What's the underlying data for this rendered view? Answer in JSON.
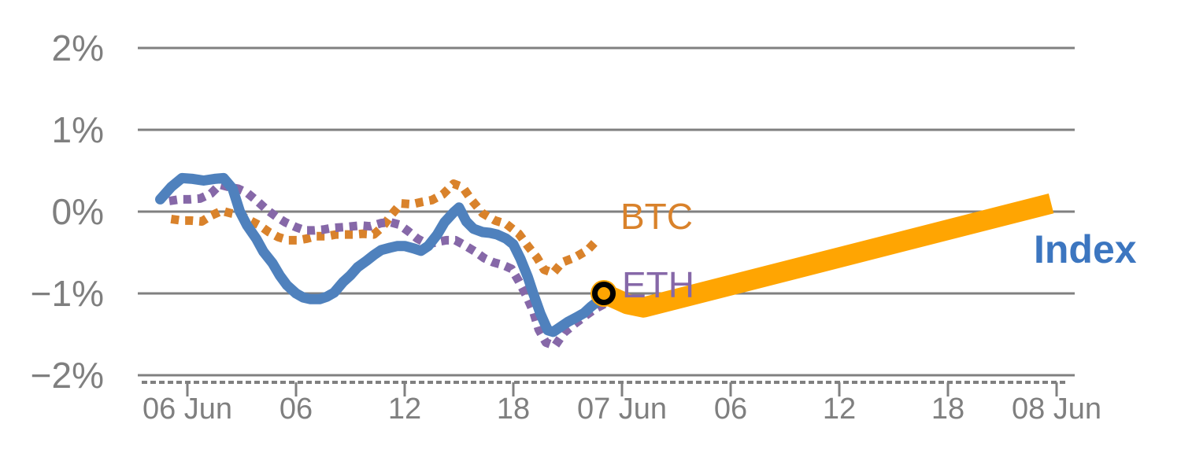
{
  "chart_data": {
    "type": "line",
    "title": "",
    "description": "Intraday percent-change chart comparing BTC, ETH and a crypto Index, with an amber projection band extending to 08 Jun and a black ring marker at the current value",
    "x_axis": {
      "unit": "time",
      "tick_hours": [
        0,
        6,
        12,
        18,
        24,
        30,
        36,
        42,
        48
      ],
      "tick_labels": [
        "06 Jun",
        "06",
        "12",
        "18",
        "07 Jun",
        "06",
        "12",
        "18",
        "08 Jun"
      ],
      "range_hours": [
        -2.7,
        49.0
      ]
    },
    "y_axis": {
      "unit": "%",
      "tick_values": [
        2,
        1,
        0,
        -1,
        -2
      ],
      "tick_labels": [
        "2%",
        "1%",
        "0%",
        "−1%",
        "−2%"
      ],
      "range": [
        -2,
        2
      ],
      "grid": true
    },
    "series": [
      {
        "name": "BTC",
        "style": "dotted",
        "color": "#d9822b",
        "points": [
          [
            -0.9,
            -0.09
          ],
          [
            -0.3,
            -0.11
          ],
          [
            0.2,
            -0.11
          ],
          [
            0.8,
            -0.12
          ],
          [
            1.3,
            -0.05
          ],
          [
            1.9,
            0.01
          ],
          [
            2.4,
            -0.02
          ],
          [
            2.9,
            -0.04
          ],
          [
            3.4,
            -0.1
          ],
          [
            4.0,
            -0.17
          ],
          [
            4.5,
            -0.25
          ],
          [
            5.0,
            -0.31
          ],
          [
            5.6,
            -0.35
          ],
          [
            6.1,
            -0.35
          ],
          [
            6.6,
            -0.33
          ],
          [
            7.1,
            -0.3
          ],
          [
            7.7,
            -0.3
          ],
          [
            8.2,
            -0.28
          ],
          [
            8.7,
            -0.28
          ],
          [
            9.2,
            -0.28
          ],
          [
            9.7,
            -0.27
          ],
          [
            10.3,
            -0.28
          ],
          [
            10.8,
            -0.18
          ],
          [
            11.3,
            -0.03
          ],
          [
            11.8,
            0.1
          ],
          [
            12.4,
            0.09
          ],
          [
            13.0,
            0.12
          ],
          [
            13.5,
            0.14
          ],
          [
            14.1,
            0.21
          ],
          [
            14.7,
            0.34
          ],
          [
            15.2,
            0.3
          ],
          [
            15.7,
            0.14
          ],
          [
            16.3,
            -0.02
          ],
          [
            17.0,
            -0.11
          ],
          [
            17.6,
            -0.15
          ],
          [
            18.3,
            -0.27
          ],
          [
            18.8,
            -0.42
          ],
          [
            19.3,
            -0.56
          ],
          [
            19.7,
            -0.71
          ],
          [
            20.2,
            -0.75
          ],
          [
            20.7,
            -0.62
          ],
          [
            21.4,
            -0.56
          ],
          [
            22.1,
            -0.47
          ],
          [
            22.7,
            -0.33
          ]
        ]
      },
      {
        "name": "ETH",
        "style": "dotted",
        "color": "#8668a8",
        "points": [
          [
            -1.0,
            0.13
          ],
          [
            -0.4,
            0.15
          ],
          [
            0.1,
            0.15
          ],
          [
            0.7,
            0.16
          ],
          [
            1.3,
            0.22
          ],
          [
            1.8,
            0.33
          ],
          [
            2.3,
            0.3
          ],
          [
            2.8,
            0.28
          ],
          [
            3.3,
            0.23
          ],
          [
            3.9,
            0.12
          ],
          [
            4.4,
            0.02
          ],
          [
            4.9,
            -0.06
          ],
          [
            5.4,
            -0.13
          ],
          [
            6.0,
            -0.19
          ],
          [
            6.5,
            -0.23
          ],
          [
            7.0,
            -0.23
          ],
          [
            7.5,
            -0.22
          ],
          [
            8.0,
            -0.2
          ],
          [
            8.6,
            -0.19
          ],
          [
            9.1,
            -0.18
          ],
          [
            9.6,
            -0.17
          ],
          [
            10.1,
            -0.18
          ],
          [
            10.7,
            -0.14
          ],
          [
            11.2,
            -0.13
          ],
          [
            11.7,
            -0.16
          ],
          [
            12.2,
            -0.24
          ],
          [
            12.7,
            -0.33
          ],
          [
            13.3,
            -0.4
          ],
          [
            13.8,
            -0.37
          ],
          [
            14.3,
            -0.35
          ],
          [
            14.8,
            -0.35
          ],
          [
            15.3,
            -0.41
          ],
          [
            15.9,
            -0.49
          ],
          [
            16.4,
            -0.57
          ],
          [
            16.9,
            -0.62
          ],
          [
            17.4,
            -0.65
          ],
          [
            17.9,
            -0.7
          ],
          [
            18.3,
            -0.85
          ],
          [
            18.7,
            -1.02
          ],
          [
            19.1,
            -1.22
          ],
          [
            19.4,
            -1.44
          ],
          [
            19.8,
            -1.6
          ],
          [
            20.3,
            -1.64
          ],
          [
            20.8,
            -1.48
          ],
          [
            21.4,
            -1.37
          ],
          [
            22.0,
            -1.27
          ],
          [
            22.5,
            -1.19
          ],
          [
            23.1,
            -1.12
          ]
        ]
      },
      {
        "name": "Index forecast",
        "style": "band",
        "color": "#ffa502",
        "points": [
          [
            23.0,
            -1.0
          ],
          [
            24.3,
            -1.13
          ],
          [
            25.2,
            -1.17
          ],
          [
            47.7,
            0.1
          ]
        ]
      },
      {
        "name": "Index",
        "style": "line",
        "color": "#4f81bd",
        "points": [
          [
            -1.5,
            0.15
          ],
          [
            -0.9,
            0.3
          ],
          [
            -0.3,
            0.41
          ],
          [
            0.3,
            0.4
          ],
          [
            0.9,
            0.38
          ],
          [
            1.5,
            0.4
          ],
          [
            2.0,
            0.41
          ],
          [
            2.5,
            0.28
          ],
          [
            2.9,
            0.0
          ],
          [
            3.3,
            -0.17
          ],
          [
            3.8,
            -0.33
          ],
          [
            4.2,
            -0.49
          ],
          [
            4.7,
            -0.63
          ],
          [
            5.1,
            -0.78
          ],
          [
            5.5,
            -0.9
          ],
          [
            6.0,
            -1.0
          ],
          [
            6.4,
            -1.05
          ],
          [
            6.8,
            -1.07
          ],
          [
            7.3,
            -1.07
          ],
          [
            7.7,
            -1.04
          ],
          [
            8.1,
            -0.99
          ],
          [
            8.6,
            -0.86
          ],
          [
            9.0,
            -0.78
          ],
          [
            9.4,
            -0.68
          ],
          [
            9.9,
            -0.6
          ],
          [
            10.3,
            -0.53
          ],
          [
            10.7,
            -0.47
          ],
          [
            11.2,
            -0.44
          ],
          [
            11.6,
            -0.42
          ],
          [
            12.0,
            -0.42
          ],
          [
            12.5,
            -0.45
          ],
          [
            12.9,
            -0.48
          ],
          [
            13.3,
            -0.42
          ],
          [
            13.8,
            -0.28
          ],
          [
            14.2,
            -0.13
          ],
          [
            14.7,
            -0.01
          ],
          [
            15.0,
            0.05
          ],
          [
            15.4,
            -0.12
          ],
          [
            15.8,
            -0.21
          ],
          [
            16.3,
            -0.25
          ],
          [
            16.7,
            -0.26
          ],
          [
            17.1,
            -0.28
          ],
          [
            17.6,
            -0.33
          ],
          [
            18.0,
            -0.4
          ],
          [
            18.4,
            -0.58
          ],
          [
            18.8,
            -0.8
          ],
          [
            19.1,
            -1.0
          ],
          [
            19.5,
            -1.25
          ],
          [
            19.9,
            -1.45
          ],
          [
            20.2,
            -1.47
          ],
          [
            20.6,
            -1.41
          ],
          [
            21.0,
            -1.35
          ],
          [
            21.5,
            -1.29
          ],
          [
            21.9,
            -1.24
          ],
          [
            22.3,
            -1.16
          ],
          [
            22.7,
            -1.09
          ],
          [
            23.0,
            -1.0
          ]
        ]
      }
    ],
    "marker": {
      "hour": 23.0,
      "value": -1.0,
      "ring_color": "#000000",
      "fill_color": "#ffa502"
    },
    "labels": {
      "btc": "BTC",
      "eth": "ETH",
      "index": "Index"
    },
    "legend_position": "inline-right",
    "colors": {
      "grid": "#808080",
      "tick_text": "#7f7f7f",
      "btc": "#d9822b",
      "eth": "#8668a8",
      "index_line": "#4f81bd",
      "index_label": "#3c76c0",
      "forecast_band": "#ffa502"
    }
  }
}
